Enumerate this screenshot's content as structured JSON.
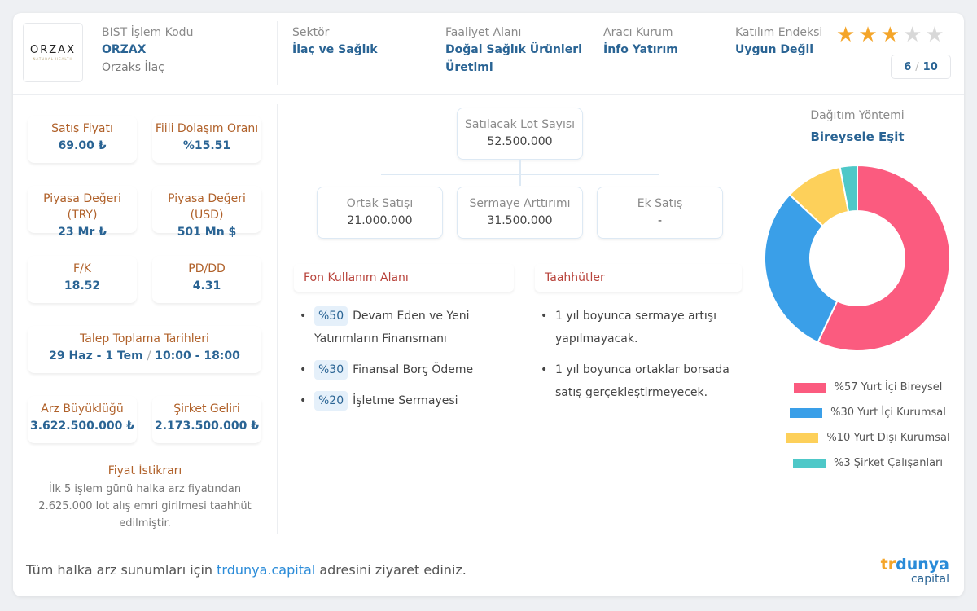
{
  "company": {
    "logo_text": "ORZAX",
    "logo_sub": "NATURAL HEALTH",
    "code_label": "BIST İşlem Kodu",
    "code": "ORZAX",
    "name": "Orzaks İlaç"
  },
  "header": {
    "sector_label": "Sektör",
    "sector": "İlaç ve Sağlık",
    "activity_label": "Faaliyet Alanı",
    "activity_line1": "Doğal Sağlık Ürünleri",
    "activity_line2": "Üretimi",
    "broker_label": "Aracı Kurum",
    "broker": "İnfo Yatırım",
    "index_label": "Katılım Endeksi",
    "index": "Uygun Değil",
    "stars_filled": 3,
    "stars_total": 5,
    "rating_value": "6",
    "rating_sep": "/",
    "rating_max": "10"
  },
  "stats": {
    "price_label": "Satış Fiyatı",
    "price": "69.00 ₺",
    "float_label": "Fiili Dolaşım Oranı",
    "float": "%15.51",
    "mcap_try_label": "Piyasa Değeri (TRY)",
    "mcap_try": "23 Mr ₺",
    "mcap_usd_label": "Piyasa Değeri (USD)",
    "mcap_usd": "501 Mn $",
    "pe_label": "F/K",
    "pe": "18.52",
    "pb_label": "PD/DD",
    "pb": "4.31",
    "dates_label": "Talep Toplama Tarihleri",
    "dates": "29 Haz - 1 Tem",
    "dates_sep": "/",
    "hours": "10:00 - 18:00",
    "size_label": "Arz Büyüklüğü",
    "size": "3.622.500.000 ₺",
    "revenue_label": "Şirket Geliri",
    "revenue": "2.173.500.000 ₺",
    "stability_label": "Fiyat İstikrarı",
    "stability_text": "İlk 5 işlem günü halka arz fiyatından 2.625.000 lot alış emri girilmesi taahhüt edilmiştir."
  },
  "lots": {
    "total_label": "Satılacak Lot Sayısı",
    "total": "52.500.000",
    "partner_label": "Ortak Satışı",
    "partner": "21.000.000",
    "capital_label": "Sermaye Arttırımı",
    "capital": "31.500.000",
    "extra_label": "Ek Satış",
    "extra": "-"
  },
  "funds": {
    "title": "Fon Kullanım Alanı",
    "items": [
      {
        "pct": "%50",
        "text": "Devam Eden ve Yeni Yatırımların Finansmanı"
      },
      {
        "pct": "%30",
        "text": "Finansal Borç Ödeme"
      },
      {
        "pct": "%20",
        "text": "İşletme Sermayesi"
      }
    ]
  },
  "commitments": {
    "title": "Taahhütler",
    "items": [
      "1 yıl boyunca sermaye artışı yapılmayacak.",
      "1 yıl boyunca ortaklar borsada satış gerçekleştirmeyecek."
    ]
  },
  "distribution": {
    "label": "Dağıtım Yöntemi",
    "method": "Bireysele Eşit"
  },
  "chart_data": {
    "type": "pie",
    "donut": true,
    "categories": [
      "%57 Yurt İçi Bireysel",
      "%30 Yurt İçi Kurumsal",
      "%10 Yurt Dışı Kurumsal",
      "%3 Şirket Çalışanları"
    ],
    "values": [
      57,
      30,
      10,
      3
    ],
    "colors": [
      "#fb5b7f",
      "#3a9fe8",
      "#fdd05a",
      "#4ec8c8"
    ],
    "legend_position": "bottom"
  },
  "footer": {
    "text_before": "Tüm halka arz sunumları için ",
    "link": "trdunya.capital",
    "text_after": " adresini ziyaret ediniz.",
    "brand_tr": "tr",
    "brand_dunya": "dunya",
    "brand_capital": "capital"
  }
}
